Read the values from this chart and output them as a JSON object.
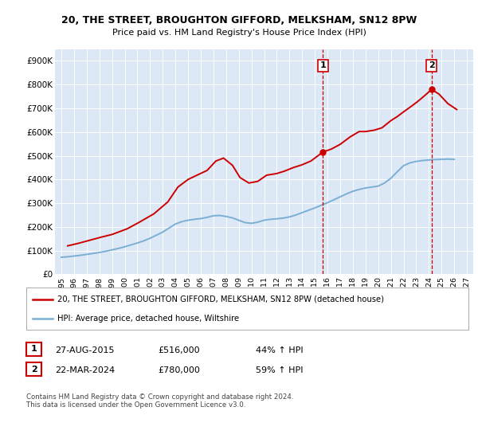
{
  "title1": "20, THE STREET, BROUGHTON GIFFORD, MELKSHAM, SN12 8PW",
  "title2": "Price paid vs. HM Land Registry's House Price Index (HPI)",
  "ylim": [
    0,
    950000
  ],
  "yticks": [
    0,
    100000,
    200000,
    300000,
    400000,
    500000,
    600000,
    700000,
    800000,
    900000
  ],
  "ytick_labels": [
    "£0",
    "£100K",
    "£200K",
    "£300K",
    "£400K",
    "£500K",
    "£600K",
    "£700K",
    "£800K",
    "£900K"
  ],
  "legend_line1": "20, THE STREET, BROUGHTON GIFFORD, MELKSHAM, SN12 8PW (detached house)",
  "legend_line2": "HPI: Average price, detached house, Wiltshire",
  "transaction1_date": "27-AUG-2015",
  "transaction1_price": "£516,000",
  "transaction1_hpi": "44% ↑ HPI",
  "transaction2_date": "22-MAR-2024",
  "transaction2_price": "£780,000",
  "transaction2_hpi": "59% ↑ HPI",
  "footnote1": "Contains HM Land Registry data © Crown copyright and database right 2024.",
  "footnote2": "This data is licensed under the Open Government Licence v3.0.",
  "red_color": "#cc0000",
  "blue_color": "#7bafd4",
  "marker1_x": 2015.65,
  "marker1_y": 516000,
  "marker2_x": 2024.22,
  "marker2_y": 780000,
  "vline1_x": 2015.65,
  "vline2_x": 2024.22,
  "hpi_x": [
    1995.0,
    1995.5,
    1996.0,
    1996.5,
    1997.0,
    1997.5,
    1998.0,
    1998.5,
    1999.0,
    1999.5,
    2000.0,
    2000.5,
    2001.0,
    2001.5,
    2002.0,
    2002.5,
    2003.0,
    2003.5,
    2004.0,
    2004.5,
    2005.0,
    2005.5,
    2006.0,
    2006.5,
    2007.0,
    2007.5,
    2008.0,
    2008.5,
    2009.0,
    2009.5,
    2010.0,
    2010.5,
    2011.0,
    2011.5,
    2012.0,
    2012.5,
    2013.0,
    2013.5,
    2014.0,
    2014.5,
    2015.0,
    2015.5,
    2016.0,
    2016.5,
    2017.0,
    2017.5,
    2018.0,
    2018.5,
    2019.0,
    2019.5,
    2020.0,
    2020.5,
    2021.0,
    2021.5,
    2022.0,
    2022.5,
    2023.0,
    2023.5,
    2024.0,
    2024.5,
    2025.0,
    2025.5,
    2026.0
  ],
  "hpi_y": [
    72000,
    74000,
    77000,
    80000,
    84000,
    88000,
    92000,
    97000,
    103000,
    109000,
    116000,
    124000,
    132000,
    141000,
    152000,
    165000,
    178000,
    195000,
    212000,
    222000,
    228000,
    232000,
    235000,
    240000,
    247000,
    248000,
    244000,
    238000,
    228000,
    218000,
    215000,
    220000,
    228000,
    232000,
    234000,
    237000,
    242000,
    250000,
    260000,
    270000,
    280000,
    291000,
    302000,
    314000,
    327000,
    339000,
    350000,
    358000,
    364000,
    368000,
    372000,
    385000,
    405000,
    432000,
    458000,
    470000,
    476000,
    480000,
    482000,
    484000,
    485000,
    486000,
    485000
  ],
  "price_x": [
    1995.5,
    1996.3,
    1997.2,
    1998.1,
    1999.0,
    2000.2,
    2001.1,
    2002.3,
    2003.4,
    2004.2,
    2005.0,
    2005.7,
    2006.5,
    2007.2,
    2007.8,
    2008.5,
    2009.1,
    2009.8,
    2010.5,
    2011.2,
    2012.0,
    2012.6,
    2013.3,
    2014.0,
    2014.7,
    2015.65,
    2016.3,
    2017.0,
    2017.8,
    2018.5,
    2019.0,
    2019.7,
    2020.3,
    2021.0,
    2021.5,
    2022.0,
    2022.6,
    2023.1,
    2023.7,
    2024.22,
    2024.8,
    2025.5,
    2026.2
  ],
  "price_y": [
    120000,
    130000,
    143000,
    156000,
    168000,
    192000,
    218000,
    255000,
    305000,
    368000,
    400000,
    418000,
    438000,
    478000,
    490000,
    460000,
    408000,
    385000,
    392000,
    418000,
    425000,
    435000,
    450000,
    462000,
    478000,
    516000,
    528000,
    548000,
    580000,
    602000,
    602000,
    608000,
    618000,
    648000,
    665000,
    685000,
    708000,
    728000,
    755000,
    780000,
    760000,
    720000,
    695000
  ],
  "xtick_years": [
    1995,
    1996,
    1997,
    1998,
    1999,
    2000,
    2001,
    2002,
    2003,
    2004,
    2005,
    2006,
    2007,
    2008,
    2009,
    2010,
    2011,
    2012,
    2013,
    2014,
    2015,
    2016,
    2017,
    2018,
    2019,
    2020,
    2021,
    2022,
    2023,
    2024,
    2025,
    2026,
    2027
  ],
  "xlim": [
    1994.5,
    2027.5
  ],
  "background_color": "#dce8f5"
}
